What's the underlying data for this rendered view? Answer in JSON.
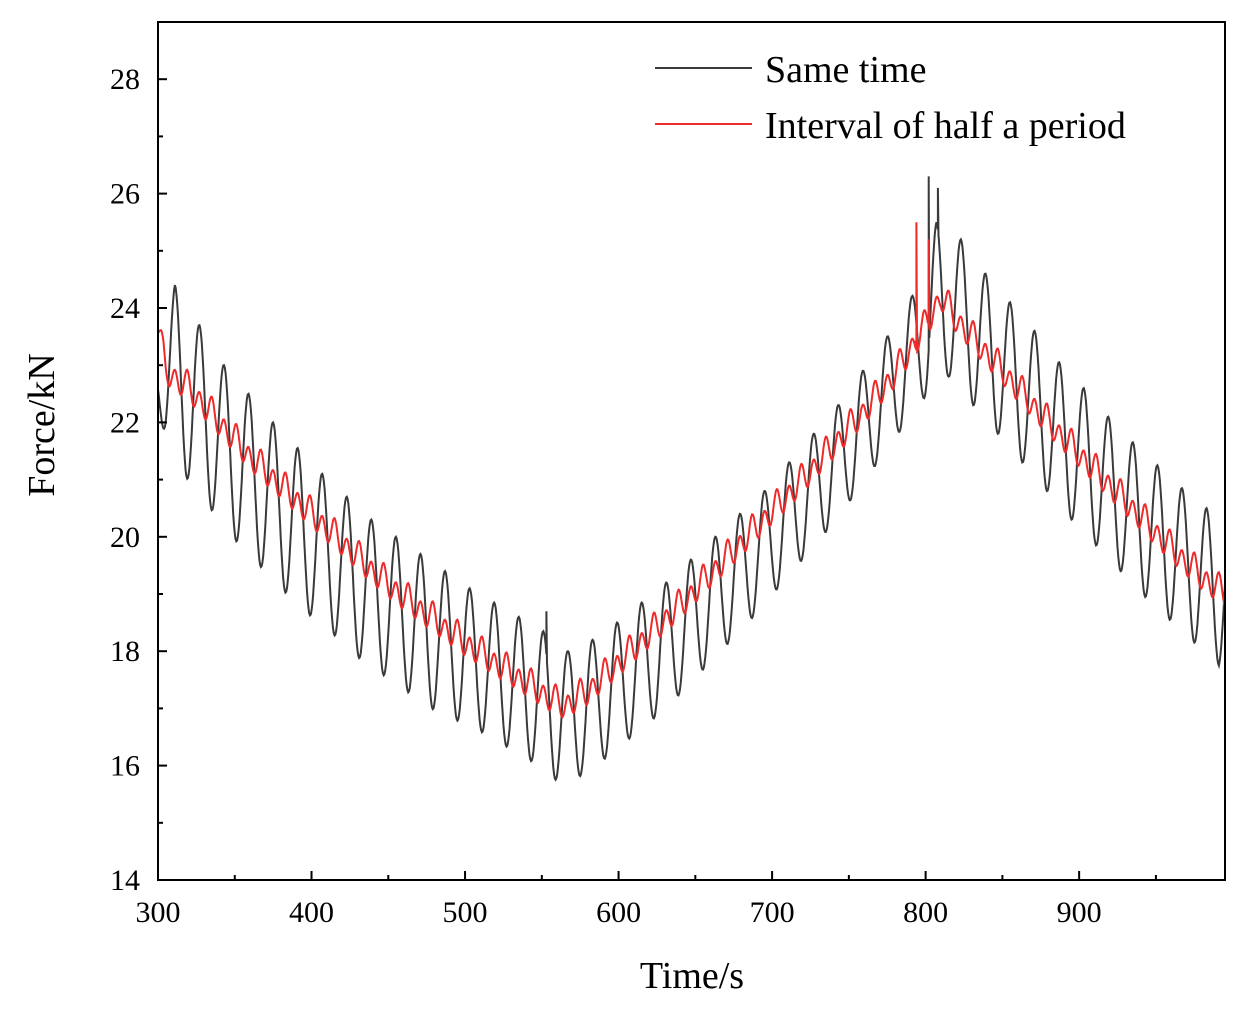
{
  "chart_data": {
    "type": "line",
    "title": "",
    "xlabel": "Time/s",
    "ylabel": "Force/kN",
    "xlim": [
      300,
      995
    ],
    "ylim": [
      14,
      29
    ],
    "x_ticks": [
      300,
      400,
      500,
      600,
      700,
      800,
      900
    ],
    "x_minor_ticks": [
      350,
      450,
      550,
      650,
      750,
      850,
      950
    ],
    "y_ticks": [
      14,
      16,
      18,
      20,
      22,
      24,
      26,
      28
    ],
    "y_minor_ticks": [
      15,
      17,
      19,
      21,
      23,
      25,
      27
    ],
    "grid": false,
    "legend_position": "top-right",
    "series": [
      {
        "name": "Same time",
        "color": "#3a3a3a",
        "envelope_max_x": [
          300,
          311,
          327,
          343,
          359,
          375,
          391,
          407,
          423,
          439,
          455,
          471,
          487,
          503,
          519,
          535,
          551,
          567,
          583,
          599,
          615,
          631,
          647,
          663,
          679,
          695,
          711,
          727,
          743,
          759,
          775,
          791,
          800,
          807,
          823,
          839,
          855,
          871,
          887,
          903,
          919,
          935,
          951,
          967,
          983,
          995
        ],
        "envelope_max_y": [
          23.2,
          24.4,
          23.7,
          23.0,
          22.5,
          22.0,
          21.55,
          21.1,
          20.7,
          20.3,
          20.0,
          19.7,
          19.4,
          19.1,
          18.85,
          18.6,
          18.35,
          18.0,
          18.2,
          18.5,
          18.85,
          19.2,
          19.6,
          20.0,
          20.4,
          20.8,
          21.3,
          21.8,
          22.3,
          22.9,
          23.5,
          24.2,
          24.8,
          25.5,
          25.2,
          24.6,
          24.1,
          23.6,
          23.05,
          22.6,
          22.1,
          21.65,
          21.25,
          20.85,
          20.5,
          20.2
        ],
        "envelope_min_x": [
          300,
          305,
          318,
          334,
          350,
          366,
          382,
          398,
          414,
          430,
          446,
          462,
          478,
          494,
          510,
          526,
          542,
          558,
          574,
          590,
          606,
          622,
          638,
          654,
          670,
          686,
          702,
          718,
          734,
          750,
          766,
          782,
          798,
          815,
          831,
          847,
          863,
          879,
          895,
          911,
          927,
          943,
          959,
          975,
          991,
          995
        ],
        "envelope_min_y": [
          22.3,
          21.7,
          21.05,
          20.5,
          19.95,
          19.5,
          19.05,
          18.65,
          18.3,
          17.9,
          17.6,
          17.3,
          17.0,
          16.8,
          16.6,
          16.35,
          16.1,
          15.75,
          15.8,
          16.1,
          16.45,
          16.8,
          17.2,
          17.65,
          18.1,
          18.55,
          19.05,
          19.55,
          20.05,
          20.6,
          21.2,
          21.8,
          22.4,
          22.8,
          22.3,
          21.8,
          21.3,
          20.8,
          20.3,
          19.85,
          19.4,
          18.95,
          18.55,
          18.15,
          17.75,
          18.1
        ],
        "period": 16,
        "spikes": [
          {
            "x": 553,
            "y": 18.7
          },
          {
            "x": 802,
            "y": 26.3
          },
          {
            "x": 808,
            "y": 26.1
          }
        ]
      },
      {
        "name": "Interval of half a period",
        "color": "#ee2a2a",
        "trend_x": [
          300,
          305,
          320,
          340,
          360,
          380,
          400,
          420,
          440,
          460,
          480,
          500,
          520,
          540,
          560,
          565,
          580,
          600,
          620,
          640,
          660,
          680,
          700,
          720,
          740,
          760,
          780,
          800,
          810,
          820,
          840,
          860,
          880,
          900,
          920,
          940,
          960,
          980,
          995
        ],
        "trend_y": [
          23.7,
          22.9,
          22.6,
          22.0,
          21.4,
          20.9,
          20.4,
          19.9,
          19.4,
          18.95,
          18.55,
          18.15,
          17.8,
          17.45,
          17.1,
          17.05,
          17.3,
          17.8,
          18.3,
          18.8,
          19.35,
          19.9,
          20.45,
          21.0,
          21.6,
          22.2,
          22.85,
          23.7,
          24.2,
          23.8,
          23.2,
          22.6,
          22.0,
          21.45,
          20.9,
          20.35,
          19.8,
          19.3,
          19.0
        ],
        "period": 8,
        "spikes": [
          {
            "x": 794,
            "y": 25.5
          },
          {
            "x": 802,
            "y": 25.2
          }
        ]
      }
    ]
  }
}
